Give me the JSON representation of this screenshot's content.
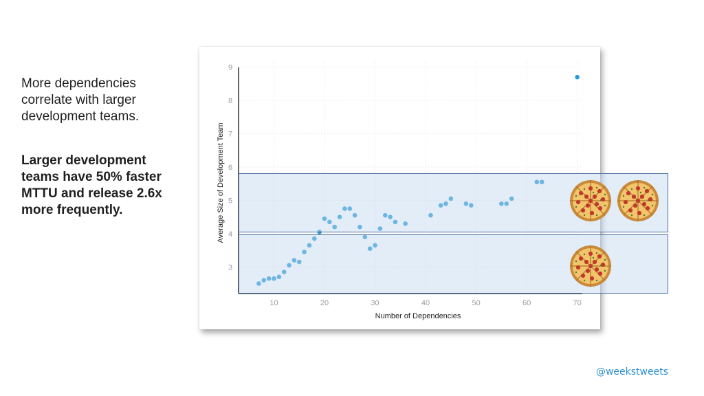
{
  "slide": {
    "intro_text": "More dependencies correlate with larger development teams.",
    "emphasis_text": "Larger development teams have 50% faster MTTU and release 2.6x more frequently.",
    "handle": "@weekstweets"
  },
  "colors": {
    "point": "#2a9bd6",
    "band_fill": "#bed6f0",
    "band_border": "#4a6d9a",
    "handle": "#2a8fd0"
  },
  "icons": [
    "pizza-icon",
    "pizza-icon",
    "pizza-icon"
  ],
  "chart_data": {
    "type": "scatter",
    "title": "",
    "xlabel": "Number of Dependencies",
    "ylabel": "Average Size of Development Team",
    "xlim": [
      3,
      71
    ],
    "ylim": [
      2.2,
      9.2
    ],
    "xticks": [
      10,
      20,
      30,
      40,
      50,
      60,
      70
    ],
    "yticks": [
      3,
      4,
      5,
      6,
      7,
      8,
      9
    ],
    "grid": true,
    "series": [
      {
        "points": [
          [
            7,
            2.5
          ],
          [
            8,
            2.6
          ],
          [
            9,
            2.65
          ],
          [
            10,
            2.65
          ],
          [
            11,
            2.7
          ],
          [
            12,
            2.85
          ],
          [
            13,
            3.05
          ],
          [
            14,
            3.2
          ],
          [
            15,
            3.15
          ],
          [
            16,
            3.45
          ],
          [
            17,
            3.65
          ],
          [
            18,
            3.85
          ],
          [
            19,
            4.05
          ],
          [
            20,
            4.45
          ],
          [
            21,
            4.35
          ],
          [
            22,
            4.2
          ],
          [
            23,
            4.5
          ],
          [
            24,
            4.75
          ],
          [
            25,
            4.75
          ],
          [
            26,
            4.55
          ],
          [
            27,
            4.2
          ],
          [
            28,
            3.9
          ],
          [
            29,
            3.55
          ],
          [
            30,
            3.65
          ],
          [
            31,
            4.15
          ],
          [
            32,
            4.55
          ],
          [
            33,
            4.5
          ],
          [
            34,
            4.35
          ],
          [
            36,
            4.3
          ],
          [
            41,
            4.55
          ],
          [
            43,
            4.85
          ],
          [
            44,
            4.9
          ],
          [
            45,
            5.05
          ],
          [
            48,
            4.9
          ],
          [
            49,
            4.85
          ],
          [
            55,
            4.9
          ],
          [
            56,
            4.9
          ],
          [
            57,
            5.05
          ],
          [
            62,
            5.55
          ],
          [
            63,
            5.55
          ],
          [
            70,
            8.7
          ]
        ]
      }
    ]
  }
}
